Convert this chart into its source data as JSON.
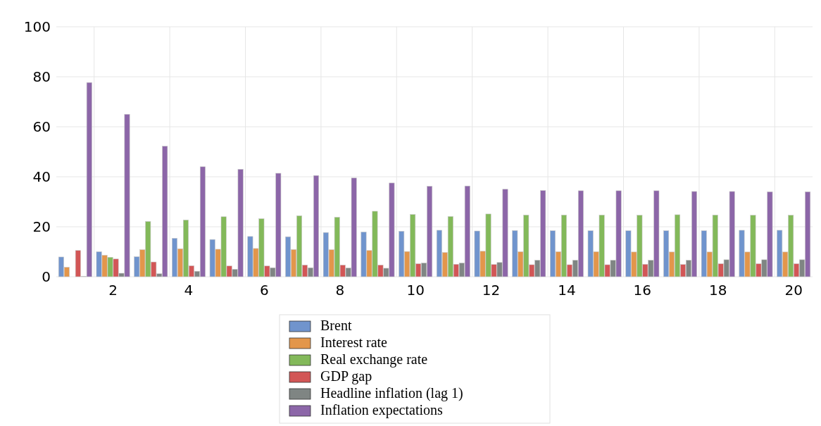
{
  "chart_data": {
    "type": "bar",
    "categories": [
      null,
      "2",
      null,
      "4",
      null,
      "6",
      null,
      "8",
      null,
      "10",
      null,
      "12",
      null,
      "14",
      null,
      "16",
      null,
      "18",
      null,
      "20"
    ],
    "series": [
      {
        "name": "Brent",
        "color": "#7094cd",
        "values": [
          7.9,
          10,
          8,
          15.4,
          14.9,
          16.1,
          16,
          17.7,
          17.9,
          18.2,
          18.6,
          18.3,
          18.5,
          18.4,
          18.4,
          18.4,
          18.4,
          18.4,
          18.6,
          18.6
        ]
      },
      {
        "name": "Interest rate",
        "color": "#e3964b",
        "values": [
          3.8,
          8.6,
          10.8,
          11.2,
          11,
          11.3,
          10.9,
          10.8,
          10.5,
          10.1,
          9.7,
          10.2,
          10,
          10,
          10,
          9.9,
          9.9,
          9.9,
          9.9,
          9.9
        ]
      },
      {
        "name": "Real exchange rate",
        "color": "#83b95a",
        "values": [
          0,
          7.8,
          22.1,
          22.7,
          24,
          23.2,
          24.4,
          23.8,
          26.2,
          24.9,
          24.1,
          25.1,
          24.7,
          24.7,
          24.7,
          24.6,
          24.8,
          24.7,
          24.6,
          24.6
        ]
      },
      {
        "name": "GDP gap",
        "color": "#d25656",
        "values": [
          10.5,
          7.1,
          5.9,
          4.4,
          4.3,
          4.3,
          4.7,
          4.7,
          4.7,
          5.2,
          5,
          4.9,
          4.8,
          4.8,
          4.8,
          5,
          4.9,
          5.2,
          5.2,
          5.2
        ]
      },
      {
        "name": "Headline inflation (lag 1)",
        "color": "#7f8583",
        "values": [
          0.2,
          1.4,
          1.2,
          2.2,
          3,
          3.6,
          3.6,
          3.5,
          3.4,
          5.5,
          5.5,
          5.7,
          6.6,
          6.6,
          6.6,
          6.6,
          6.6,
          6.8,
          6.8,
          6.8
        ]
      },
      {
        "name": "Inflation expectations",
        "color": "#8c66a8",
        "values": [
          77.7,
          65,
          52.2,
          44,
          43,
          41.4,
          40.5,
          39.5,
          37.5,
          36.2,
          36.3,
          35,
          34.5,
          34.4,
          34.4,
          34.4,
          34.1,
          34.1,
          34,
          34
        ]
      }
    ],
    "ylim": [
      0,
      100
    ],
    "yticks": [
      0,
      20,
      40,
      60,
      80,
      100
    ],
    "grid": true,
    "legend": "bottom"
  }
}
